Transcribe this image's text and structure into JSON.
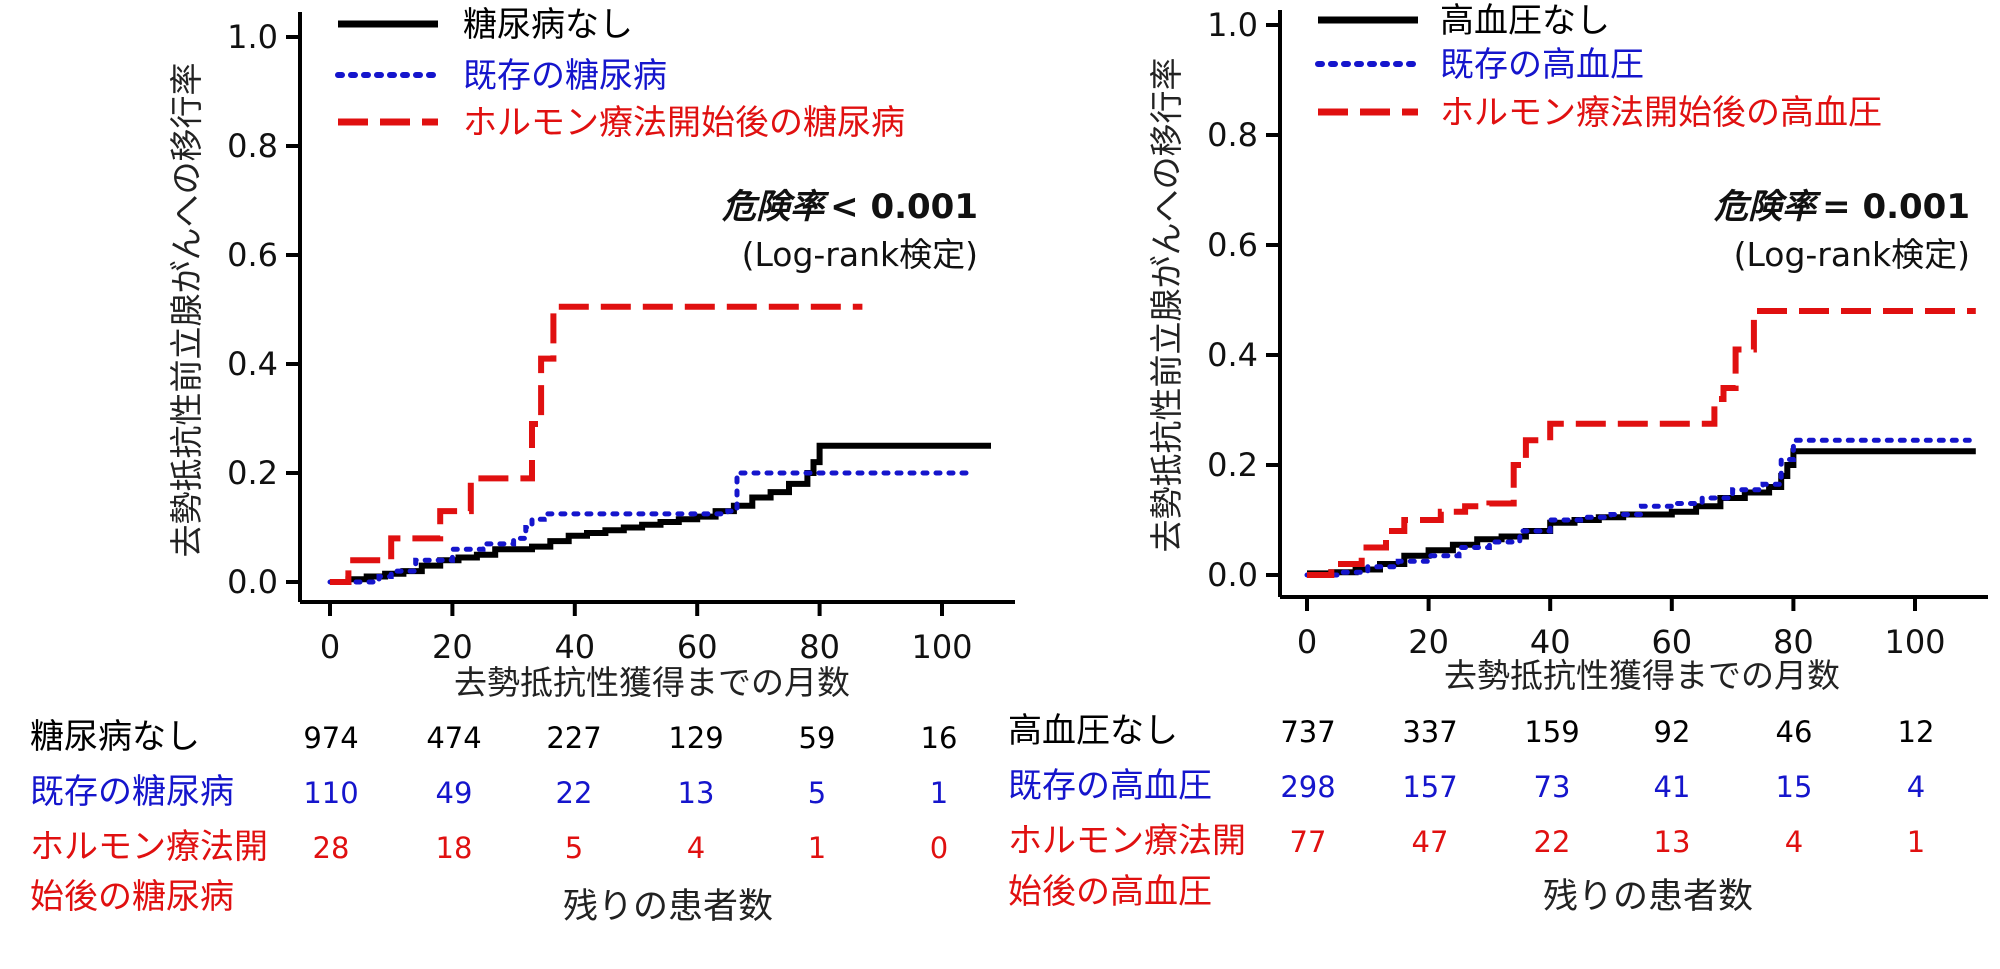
{
  "chart_data": [
    {
      "type": "line",
      "subtype": "kaplan-meier",
      "ylabel": "去勢抵抗性前立腺がんへの移行率",
      "xlabel": "去勢抵抗性獲得までの月数",
      "xlim": [
        0,
        108
      ],
      "ylim": [
        0,
        1.0
      ],
      "xticks": [
        "0",
        "20",
        "40",
        "60",
        "80",
        "100"
      ],
      "yticks": [
        "0.0",
        "0.2",
        "0.4",
        "0.6",
        "0.8",
        "1.0"
      ],
      "grid": false,
      "legend_position": "top-left",
      "annotation": {
        "stat_label": "危険率",
        "stat_value": "< 0.001",
        "test": "(Log-rank検定)"
      },
      "series": [
        {
          "name": "糖尿病なし",
          "style": "solid",
          "color": "#000000",
          "x": [
            0,
            3,
            6,
            9,
            12,
            15,
            18,
            21,
            24,
            27,
            30,
            33,
            36,
            39,
            42,
            45,
            48,
            51,
            54,
            57,
            60,
            63,
            66,
            69,
            72,
            75,
            78,
            79,
            80,
            108
          ],
          "y": [
            0.0,
            0.005,
            0.01,
            0.015,
            0.02,
            0.03,
            0.04,
            0.045,
            0.05,
            0.06,
            0.06,
            0.065,
            0.075,
            0.085,
            0.09,
            0.095,
            0.1,
            0.105,
            0.11,
            0.115,
            0.12,
            0.13,
            0.14,
            0.155,
            0.165,
            0.18,
            0.2,
            0.22,
            0.25,
            0.25
          ]
        },
        {
          "name": "既存の糖尿病",
          "style": "dotted",
          "color": "#1515cc",
          "x": [
            0,
            8,
            10,
            14,
            20,
            25,
            30,
            32,
            33,
            35,
            40,
            50,
            60,
            65,
            66.5,
            79,
            105
          ],
          "y": [
            0.0,
            0.01,
            0.02,
            0.04,
            0.06,
            0.07,
            0.08,
            0.1,
            0.115,
            0.125,
            0.125,
            0.125,
            0.125,
            0.13,
            0.2,
            0.2,
            0.2
          ]
        },
        {
          "name": "ホルモン療法開始後の糖尿病",
          "style": "dashed",
          "color": "#e01010",
          "x": [
            0,
            3,
            10,
            18,
            23,
            33,
            34.5,
            36.5,
            87
          ],
          "y": [
            0.0,
            0.04,
            0.08,
            0.13,
            0.19,
            0.29,
            0.41,
            0.505,
            0.505
          ]
        }
      ],
      "risk_table": {
        "caption": "残りの患者数",
        "rows": [
          {
            "label": "糖尿病なし",
            "label_lines": [
              "糖尿病なし"
            ],
            "color": "#000000",
            "values": [
              "974",
              "474",
              "227",
              "129",
              "59",
              "16"
            ]
          },
          {
            "label": "既存の糖尿病",
            "label_lines": [
              "既存の糖尿病"
            ],
            "color": "#1515cc",
            "values": [
              "110",
              "49",
              "22",
              "13",
              "5",
              "1"
            ]
          },
          {
            "label": "ホルモン療法開始後の糖尿病",
            "label_lines": [
              "ホルモン療法開",
              "始後の糖尿病"
            ],
            "color": "#e01010",
            "values": [
              "28",
              "18",
              "5",
              "4",
              "1",
              "0"
            ]
          }
        ]
      }
    },
    {
      "type": "line",
      "subtype": "kaplan-meier",
      "ylabel": "去勢抵抗性前立腺がんへの移行率",
      "xlabel": "去勢抵抗性獲得までの月数",
      "xlim": [
        0,
        112
      ],
      "ylim": [
        0,
        1.0
      ],
      "xticks": [
        "0",
        "20",
        "40",
        "60",
        "80",
        "100"
      ],
      "yticks": [
        "0.0",
        "0.2",
        "0.4",
        "0.6",
        "0.8",
        "1.0"
      ],
      "grid": false,
      "legend_position": "top-left",
      "annotation": {
        "stat_label": "危険率",
        "stat_value": "= 0.001",
        "test": "(Log-rank検定)"
      },
      "series": [
        {
          "name": "高血圧なし",
          "style": "solid",
          "color": "#000000",
          "x": [
            0,
            4,
            8,
            12,
            16,
            20,
            24,
            28,
            32,
            36,
            40,
            44,
            48,
            52,
            56,
            60,
            64,
            68,
            72,
            76,
            78,
            79,
            80,
            110
          ],
          "y": [
            0.003,
            0.005,
            0.01,
            0.02,
            0.035,
            0.045,
            0.055,
            0.065,
            0.07,
            0.08,
            0.095,
            0.1,
            0.105,
            0.11,
            0.11,
            0.115,
            0.125,
            0.14,
            0.15,
            0.16,
            0.18,
            0.2,
            0.225,
            0.225
          ]
        },
        {
          "name": "既存の高血圧",
          "style": "dotted",
          "color": "#1515cc",
          "x": [
            0,
            5,
            10,
            15,
            20,
            25,
            30,
            35,
            40,
            45,
            50,
            55,
            60,
            65,
            70,
            75,
            78,
            80,
            110
          ],
          "y": [
            0.0,
            0.005,
            0.015,
            0.025,
            0.035,
            0.05,
            0.06,
            0.08,
            0.1,
            0.105,
            0.11,
            0.125,
            0.13,
            0.14,
            0.155,
            0.165,
            0.21,
            0.245,
            0.245
          ]
        },
        {
          "name": "ホルモン療法開始後の高血圧",
          "style": "dashed",
          "color": "#e01010",
          "x": [
            0,
            4,
            9,
            13,
            16,
            22,
            26,
            30,
            34,
            36,
            40,
            50,
            60,
            67,
            68.5,
            70.5,
            73.5,
            80,
            110
          ],
          "y": [
            0.0,
            0.02,
            0.05,
            0.08,
            0.1,
            0.115,
            0.125,
            0.13,
            0.2,
            0.245,
            0.275,
            0.275,
            0.275,
            0.32,
            0.34,
            0.41,
            0.48,
            0.48,
            0.48
          ]
        }
      ],
      "risk_table": {
        "caption": "残りの患者数",
        "rows": [
          {
            "label": "高血圧なし",
            "label_lines": [
              "高血圧なし"
            ],
            "color": "#000000",
            "values": [
              "737",
              "337",
              "159",
              "92",
              "46",
              "12"
            ]
          },
          {
            "label": "既存の高血圧",
            "label_lines": [
              "既存の高血圧"
            ],
            "color": "#1515cc",
            "values": [
              "298",
              "157",
              "73",
              "41",
              "15",
              "4"
            ]
          },
          {
            "label": "ホルモン療法開始後の高血圧",
            "label_lines": [
              "ホルモン療法開",
              "始後の高血圧"
            ],
            "color": "#e01010",
            "values": [
              "77",
              "47",
              "22",
              "13",
              "4",
              "1"
            ]
          }
        ]
      }
    }
  ]
}
